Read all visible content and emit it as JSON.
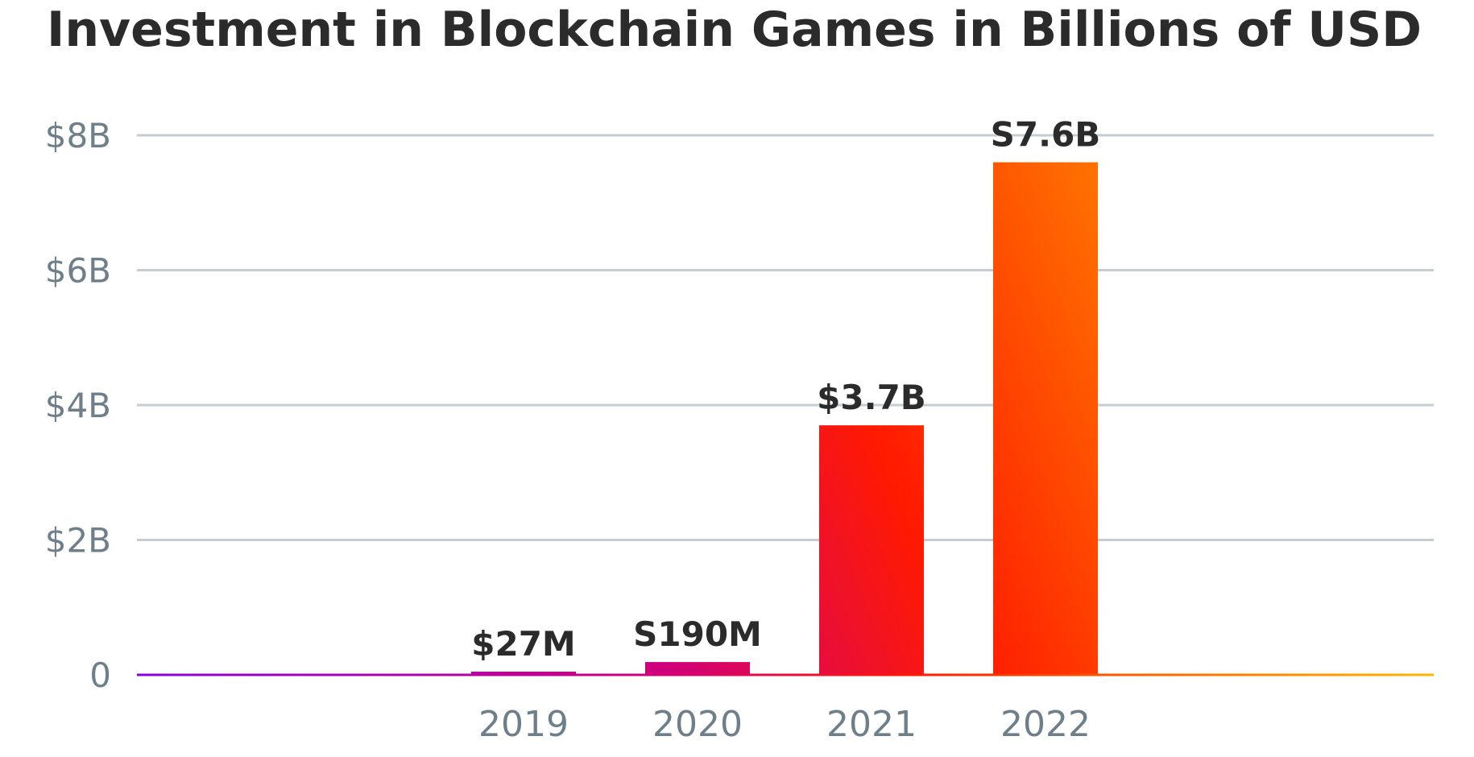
{
  "chart_data": {
    "type": "bar",
    "title": "Investment in Blockchain Games in Billions of USD",
    "xlabel": "",
    "ylabel": "",
    "categories": [
      "2019",
      "2020",
      "2021",
      "2022"
    ],
    "values": [
      0.027,
      0.19,
      3.7,
      7.6
    ],
    "data_labels": [
      "$27M",
      "S190M",
      "$3.7B",
      "S7.6B"
    ],
    "y_ticks": [
      0,
      2,
      4,
      6,
      8
    ],
    "y_tick_labels": [
      "0",
      "$2B",
      "$4B",
      "$6B",
      "$8B"
    ],
    "ylim": [
      0,
      8
    ],
    "grid": true,
    "legend": "none",
    "colors": {
      "gradient_start": "#8a00e0",
      "gradient_mid_magenta": "#d0007a",
      "gradient_mid_red": "#ff1a00",
      "gradient_mid_orange": "#ff6a00",
      "gradient_end": "#ffb800",
      "grid": "#c5ccd2",
      "tick_text": "#6f7f8a",
      "label_text": "#2b2b2b"
    }
  }
}
